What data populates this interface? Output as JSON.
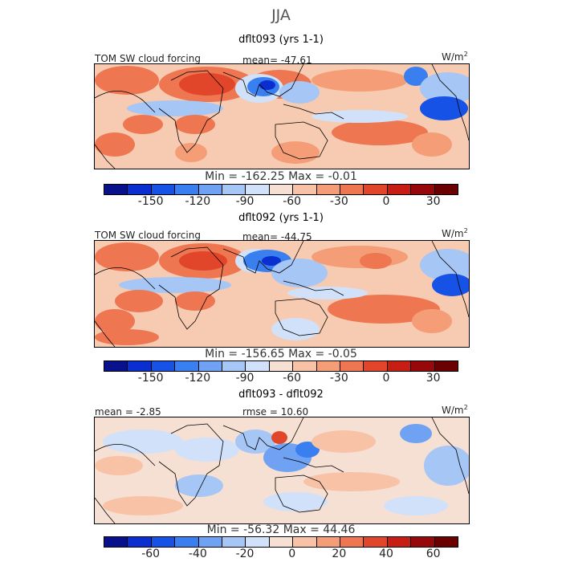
{
  "figure": {
    "title": "JJA"
  },
  "palette": {
    "abs": [
      "#08108c",
      "#0a2ecf",
      "#1652e6",
      "#3a7ff0",
      "#6fa2f3",
      "#a6c6f6",
      "#d0e1f9",
      "#f6e0d3",
      "#f8c2a6",
      "#f59d77",
      "#ee7650",
      "#e2462a",
      "#c81d13",
      "#96080a",
      "#6a0000"
    ],
    "diff": [
      "#08108c",
      "#0a2ecf",
      "#1652e6",
      "#3a7ff0",
      "#6fa2f3",
      "#a6c6f6",
      "#d0e1f9",
      "#f6e0d3",
      "#f8c2a6",
      "#f59d77",
      "#ee7650",
      "#e2462a",
      "#c81d13",
      "#96080a",
      "#6a0000"
    ],
    "land_outline": "#000000"
  },
  "panels": [
    {
      "title": "dflt093 (yrs 1-1)",
      "left_label": "TOM SW cloud forcing",
      "center_label": "mean= -47.61",
      "units": "W/m",
      "units_sup": "2",
      "minmax": "Min = -162.25 Max =  -0.01",
      "ticks": [
        "-150",
        "-120",
        "-90",
        "-60",
        "-30",
        "0",
        "30"
      ]
    },
    {
      "title": "dflt092 (yrs 1-1)",
      "left_label": "TOM SW cloud forcing",
      "center_label": "mean= -44.75",
      "units": "W/m",
      "units_sup": "2",
      "minmax": "Min = -156.65 Max =  -0.05",
      "ticks": [
        "-150",
        "-120",
        "-90",
        "-60",
        "-30",
        "0",
        "30"
      ]
    },
    {
      "title": "dflt093 - dflt092",
      "left_label": "mean =  -2.85",
      "center_label": "rmse =  10.60",
      "units": "W/m",
      "units_sup": "2",
      "minmax": "Min = -56.32 Max =  44.46",
      "ticks": [
        "-60",
        "-40",
        "-20",
        "0",
        "20",
        "40",
        "60"
      ]
    }
  ],
  "chart_data": [
    {
      "type": "heatmap",
      "title": "dflt093 (yrs 1-1)",
      "variable": "TOM SW cloud forcing",
      "units": "W/m2",
      "mean": -47.61,
      "min": -162.25,
      "max": -0.01,
      "colorbar_ticks": [
        -150,
        -120,
        -90,
        -60,
        -30,
        0,
        30
      ]
    },
    {
      "type": "heatmap",
      "title": "dflt092 (yrs 1-1)",
      "variable": "TOM SW cloud forcing",
      "units": "W/m2",
      "mean": -44.75,
      "min": -156.65,
      "max": -0.05,
      "colorbar_ticks": [
        -150,
        -120,
        -90,
        -60,
        -30,
        0,
        30
      ]
    },
    {
      "type": "heatmap",
      "title": "dflt093 - dflt092",
      "units": "W/m2",
      "mean": -2.85,
      "rmse": 10.6,
      "min": -56.32,
      "max": 44.46,
      "colorbar_ticks": [
        -60,
        -40,
        -20,
        0,
        20,
        40,
        60
      ]
    }
  ]
}
